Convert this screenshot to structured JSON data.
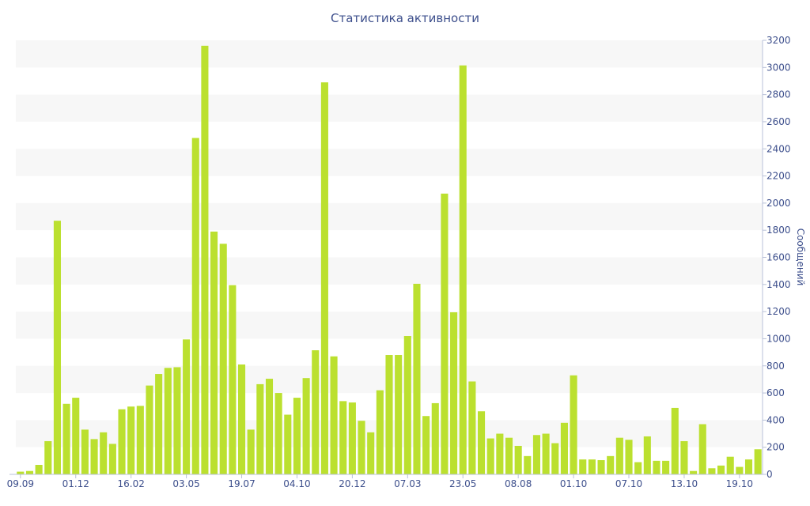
{
  "chart_data": {
    "type": "bar",
    "title": "Статистика активности",
    "xlabel": "",
    "ylabel": "Сообщений",
    "ylim": [
      0,
      3200
    ],
    "y_ticks": [
      0,
      200,
      400,
      600,
      800,
      1000,
      1200,
      1400,
      1600,
      1800,
      2000,
      2200,
      2400,
      2600,
      2800,
      3000,
      3200
    ],
    "y_axis_side": "right",
    "grid": "alternating horizontal bands",
    "x_tick_labels": [
      {
        "index": 0,
        "label": "09.09"
      },
      {
        "index": 6,
        "label": "01.12"
      },
      {
        "index": 12,
        "label": "16.02"
      },
      {
        "index": 18,
        "label": "03.05"
      },
      {
        "index": 24,
        "label": "19.07"
      },
      {
        "index": 30,
        "label": "04.10"
      },
      {
        "index": 36,
        "label": "20.12"
      },
      {
        "index": 42,
        "label": "07.03"
      },
      {
        "index": 48,
        "label": "23.05"
      },
      {
        "index": 54,
        "label": "08.08"
      },
      {
        "index": 60,
        "label": "01.10"
      },
      {
        "index": 66,
        "label": "07.10"
      },
      {
        "index": 72,
        "label": "13.10"
      },
      {
        "index": 78,
        "label": "19.10"
      }
    ],
    "values": [
      20,
      25,
      70,
      245,
      1870,
      520,
      565,
      330,
      260,
      310,
      225,
      480,
      500,
      505,
      655,
      740,
      785,
      790,
      995,
      2480,
      3160,
      1790,
      1700,
      1395,
      810,
      330,
      665,
      705,
      600,
      440,
      565,
      710,
      915,
      2890,
      870,
      540,
      530,
      395,
      310,
      620,
      880,
      880,
      1020,
      1405,
      430,
      525,
      2070,
      1195,
      3015,
      685,
      465,
      265,
      300,
      270,
      210,
      135,
      290,
      300,
      230,
      380,
      730,
      110,
      110,
      105,
      135,
      270,
      255,
      90,
      280,
      100,
      100,
      490,
      245,
      25,
      370,
      45,
      65,
      130,
      55,
      110,
      185
    ],
    "bar_color": "#bbe02f",
    "band_color": "#f7f7f7",
    "text_color": "#3d4f8c"
  }
}
